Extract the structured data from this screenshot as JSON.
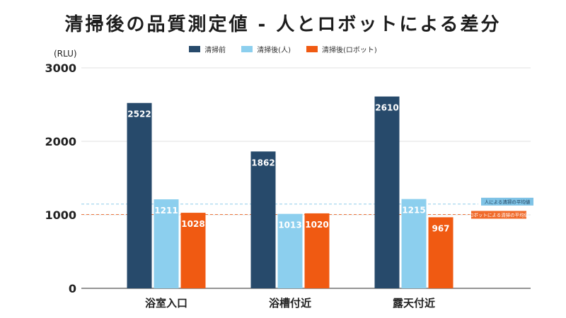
{
  "chart_data": {
    "type": "bar",
    "title": "清掃後の品質測定値 - 人とロボットによる差分",
    "ylabel": "(RLU)",
    "xlabel": "",
    "ylim": [
      0,
      3000
    ],
    "yticks": [
      "0",
      "1000",
      "2000",
      "3000"
    ],
    "grid": true,
    "legend_position": "top",
    "categories": [
      "浴室入口",
      "浴槽付近",
      "露天付近"
    ],
    "series": [
      {
        "name": "清掃前",
        "color": "#274a6b",
        "values": [
          2522,
          1862,
          2610
        ],
        "labels": [
          "2522",
          "1862",
          "2610"
        ]
      },
      {
        "name": "清掃後(人)",
        "color": "#8ccfee",
        "values": [
          1211,
          1013,
          1215
        ],
        "labels": [
          "1211",
          "1013",
          "1215"
        ]
      },
      {
        "name": "清掃後(ロボット)",
        "color": "#f05a12",
        "values": [
          1028,
          1020,
          967
        ],
        "labels": [
          "1028",
          "1020",
          "967"
        ]
      }
    ],
    "reference_lines": [
      {
        "label": "人による清掃の平均値",
        "value": 1146,
        "color": "#7fc3e6"
      },
      {
        "label": "ロボットによる清掃の平均値",
        "value": 1005,
        "color": "#f06a2a"
      }
    ]
  }
}
